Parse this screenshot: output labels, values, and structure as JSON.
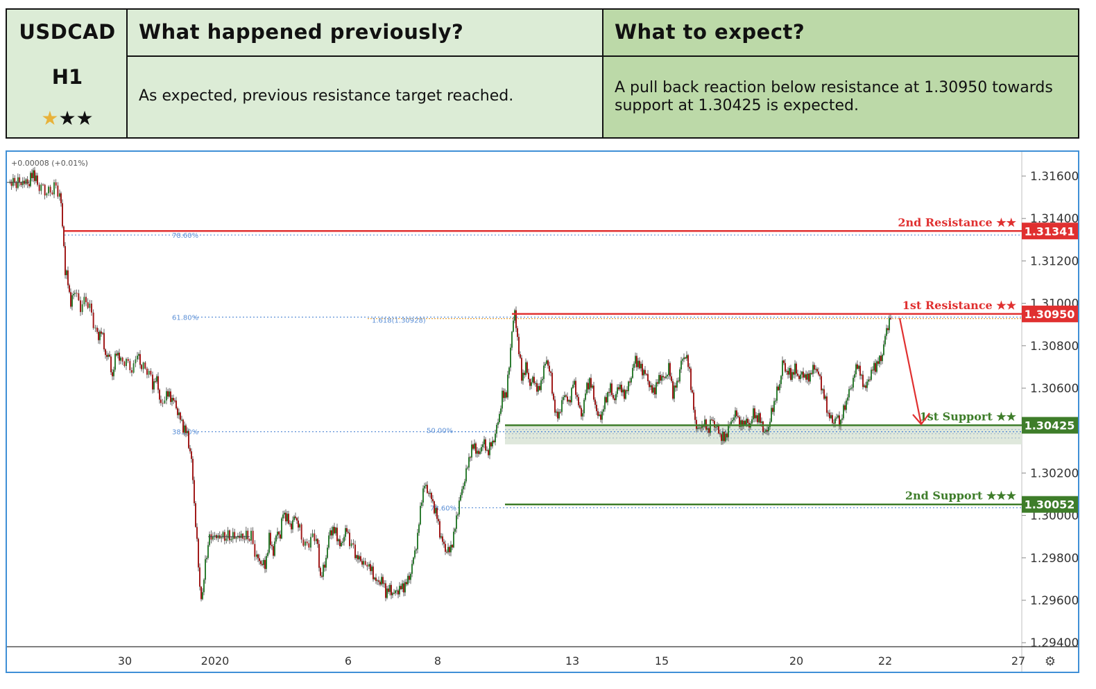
{
  "header": {
    "symbol": "USDCAD",
    "timeframe": "H1",
    "rating_stars": "★★★",
    "prev_title": "What happened previously?",
    "prev_text": "As expected, previous resistance target reached.",
    "expect_title": "What to expect?",
    "expect_text": "A pull back reaction below resistance at 1.30950 towards support at 1.30425 is expected."
  },
  "colors": {
    "resistance": "#e03030",
    "support": "#3e7d2a",
    "candle_up": "#2e7d32",
    "candle_down": "#a11b1b",
    "fib": "#5b8fd6",
    "fib_ext": "#e6a23c",
    "star_gold": "#e8b23a"
  },
  "chart_data": {
    "type": "candlestick",
    "status_text": "+0.00008 (+0.01%)",
    "y_ticks": [
      "1.31600",
      "1.31400",
      "1.31200",
      "1.31000",
      "1.30800",
      "1.30600",
      "1.30200",
      "1.30000",
      "1.29800",
      "1.29600",
      "1.29400"
    ],
    "ylim": [
      1.2936,
      1.3174
    ],
    "x_ticks": [
      "30",
      "2020",
      "6",
      "8",
      "13",
      "15",
      "20",
      "22",
      "27"
    ],
    "settings_icon": "gear-icon",
    "levels": [
      {
        "name": "2nd Resistance ★★",
        "value": 1.31341,
        "badge": "1.31341",
        "kind": "resistance"
      },
      {
        "name": "1st Resistance ★★",
        "value": 1.3095,
        "badge": "1.30950",
        "kind": "resistance"
      },
      {
        "name": "1st Support ★★",
        "value": 1.30425,
        "badge": "1.30425",
        "kind": "support"
      },
      {
        "name": "2nd Support ★★★",
        "value": 1.30052,
        "badge": "1.30052",
        "kind": "support"
      }
    ],
    "fib_labels": [
      {
        "label": "78.60%",
        "value": 1.31322
      },
      {
        "label": "61.80%",
        "value": 1.30935
      },
      {
        "label": "38.20%",
        "value": 1.30395
      },
      {
        "label": "50.00%",
        "value": 1.30395
      },
      {
        "label": "1.618(1.30928)",
        "value": 1.30928
      },
      {
        "label": "78.60%",
        "value": 1.30036
      }
    ],
    "price_path": [
      [
        0,
        1.3157
      ],
      [
        30,
        1.3157
      ],
      [
        36,
        1.3162
      ],
      [
        42,
        1.3156
      ],
      [
        50,
        1.3154
      ],
      [
        58,
        1.3152
      ],
      [
        66,
        1.3155
      ],
      [
        74,
        1.3152
      ],
      [
        78,
        1.3138
      ],
      [
        82,
        1.3115
      ],
      [
        86,
        1.311
      ],
      [
        90,
        1.31
      ],
      [
        96,
        1.3106
      ],
      [
        104,
        1.3098
      ],
      [
        112,
        1.3102
      ],
      [
        120,
        1.3095
      ],
      [
        128,
        1.3084
      ],
      [
        134,
        1.3087
      ],
      [
        140,
        1.3076
      ],
      [
        146,
        1.3074
      ],
      [
        150,
        1.3065
      ],
      [
        156,
        1.3078
      ],
      [
        162,
        1.3072
      ],
      [
        170,
        1.3073
      ],
      [
        178,
        1.3068
      ],
      [
        186,
        1.3076
      ],
      [
        192,
        1.307
      ],
      [
        200,
        1.3069
      ],
      [
        208,
        1.3062
      ],
      [
        214,
        1.3064
      ],
      [
        220,
        1.3052
      ],
      [
        228,
        1.3057
      ],
      [
        234,
        1.3056
      ],
      [
        240,
        1.3053
      ],
      [
        246,
        1.3047
      ],
      [
        252,
        1.3042
      ],
      [
        258,
        1.3038
      ],
      [
        264,
        1.3026
      ],
      [
        268,
        1.3006
      ],
      [
        272,
        1.2987
      ],
      [
        276,
        1.2965
      ],
      [
        280,
        1.2962
      ],
      [
        284,
        1.2978
      ],
      [
        290,
        1.299
      ],
      [
        300,
        1.299
      ],
      [
        350,
        1.299
      ],
      [
        358,
        1.298
      ],
      [
        364,
        1.2978
      ],
      [
        370,
        1.2976
      ],
      [
        376,
        1.2989
      ],
      [
        382,
        1.2983
      ],
      [
        388,
        1.2993
      ],
      [
        392,
        1.299
      ],
      [
        396,
        1.3002
      ],
      [
        402,
        1.2998
      ],
      [
        408,
        1.2995
      ],
      [
        414,
        1.3
      ],
      [
        420,
        1.2993
      ],
      [
        428,
        1.2985
      ],
      [
        436,
        1.2989
      ],
      [
        444,
        1.299
      ],
      [
        450,
        1.2971
      ],
      [
        456,
        1.2976
      ],
      [
        462,
        1.299
      ],
      [
        468,
        1.2994
      ],
      [
        474,
        1.299
      ],
      [
        480,
        1.2985
      ],
      [
        486,
        1.2994
      ],
      [
        492,
        1.2988
      ],
      [
        500,
        1.2982
      ],
      [
        506,
        1.2979
      ],
      [
        512,
        1.2978
      ],
      [
        520,
        1.2976
      ],
      [
        526,
        1.2972
      ],
      [
        532,
        1.2968
      ],
      [
        538,
        1.297
      ],
      [
        544,
        1.2964
      ],
      [
        550,
        1.2965
      ],
      [
        556,
        1.2963
      ],
      [
        562,
        1.2965
      ],
      [
        568,
        1.2966
      ],
      [
        574,
        1.2968
      ],
      [
        580,
        1.2973
      ],
      [
        586,
        1.2983
      ],
      [
        590,
        1.299
      ],
      [
        596,
        1.3009
      ],
      [
        600,
        1.3014
      ],
      [
        606,
        1.3011
      ],
      [
        612,
        1.3006
      ],
      [
        618,
        1.2999
      ],
      [
        624,
        1.2989
      ],
      [
        630,
        1.2984
      ],
      [
        636,
        1.2983
      ],
      [
        642,
        1.299
      ],
      [
        648,
        1.3003
      ],
      [
        654,
        1.3012
      ],
      [
        660,
        1.302
      ],
      [
        666,
        1.303
      ],
      [
        672,
        1.3033
      ],
      [
        678,
        1.3028
      ],
      [
        684,
        1.3035
      ],
      [
        690,
        1.303
      ],
      [
        696,
        1.3033
      ],
      [
        702,
        1.3038
      ],
      [
        708,
        1.3048
      ],
      [
        712,
        1.3056
      ],
      [
        718,
        1.3058
      ],
      [
        722,
        1.307
      ],
      [
        726,
        1.3088
      ],
      [
        730,
        1.3095
      ],
      [
        734,
        1.3084
      ],
      [
        740,
        1.3065
      ],
      [
        746,
        1.307
      ],
      [
        752,
        1.3062
      ],
      [
        758,
        1.3064
      ],
      [
        764,
        1.3058
      ],
      [
        770,
        1.3066
      ],
      [
        776,
        1.3074
      ],
      [
        782,
        1.3065
      ],
      [
        786,
        1.3054
      ],
      [
        790,
        1.3046
      ],
      [
        796,
        1.305
      ],
      [
        802,
        1.3058
      ],
      [
        808,
        1.3052
      ],
      [
        814,
        1.3063
      ],
      [
        820,
        1.3056
      ],
      [
        826,
        1.3046
      ],
      [
        832,
        1.3058
      ],
      [
        838,
        1.3064
      ],
      [
        844,
        1.3056
      ],
      [
        850,
        1.3046
      ],
      [
        856,
        1.3048
      ],
      [
        862,
        1.3056
      ],
      [
        868,
        1.306
      ],
      [
        874,
        1.3054
      ],
      [
        880,
        1.3062
      ],
      [
        886,
        1.3057
      ],
      [
        892,
        1.3059
      ],
      [
        898,
        1.3066
      ],
      [
        904,
        1.3074
      ],
      [
        910,
        1.307
      ],
      [
        916,
        1.3068
      ],
      [
        922,
        1.3064
      ],
      [
        928,
        1.3058
      ],
      [
        934,
        1.3061
      ],
      [
        940,
        1.3066
      ],
      [
        946,
        1.3064
      ],
      [
        952,
        1.307
      ],
      [
        958,
        1.3058
      ],
      [
        964,
        1.3062
      ],
      [
        970,
        1.3072
      ],
      [
        976,
        1.3076
      ],
      [
        982,
        1.3068
      ],
      [
        986,
        1.3056
      ],
      [
        990,
        1.3044
      ],
      [
        996,
        1.304
      ],
      [
        1002,
        1.3044
      ],
      [
        1008,
        1.304
      ],
      [
        1014,
        1.3045
      ],
      [
        1020,
        1.3042
      ],
      [
        1026,
        1.3038
      ],
      [
        1032,
        1.3036
      ],
      [
        1038,
        1.3041
      ],
      [
        1044,
        1.3046
      ],
      [
        1050,
        1.3048
      ],
      [
        1056,
        1.3042
      ],
      [
        1062,
        1.3045
      ],
      [
        1068,
        1.3042
      ],
      [
        1074,
        1.3048
      ],
      [
        1080,
        1.3046
      ],
      [
        1086,
        1.3044
      ],
      [
        1090,
        1.3038
      ],
      [
        1096,
        1.3042
      ],
      [
        1100,
        1.3048
      ],
      [
        1106,
        1.3056
      ],
      [
        1112,
        1.3062
      ],
      [
        1116,
        1.3072
      ],
      [
        1122,
        1.3068
      ],
      [
        1128,
        1.3066
      ],
      [
        1134,
        1.3069
      ],
      [
        1140,
        1.3065
      ],
      [
        1146,
        1.3067
      ],
      [
        1152,
        1.3064
      ],
      [
        1158,
        1.3068
      ],
      [
        1164,
        1.307
      ],
      [
        1170,
        1.3064
      ],
      [
        1176,
        1.3056
      ],
      [
        1182,
        1.3048
      ],
      [
        1188,
        1.3044
      ],
      [
        1194,
        1.3046
      ],
      [
        1200,
        1.3044
      ],
      [
        1206,
        1.3052
      ],
      [
        1212,
        1.3058
      ],
      [
        1218,
        1.3064
      ],
      [
        1224,
        1.3072
      ],
      [
        1230,
        1.3064
      ],
      [
        1236,
        1.306
      ],
      [
        1242,
        1.3066
      ],
      [
        1248,
        1.307
      ],
      [
        1254,
        1.3072
      ],
      [
        1260,
        1.3076
      ],
      [
        1266,
        1.3088
      ],
      [
        1272,
        1.3093
      ]
    ]
  }
}
